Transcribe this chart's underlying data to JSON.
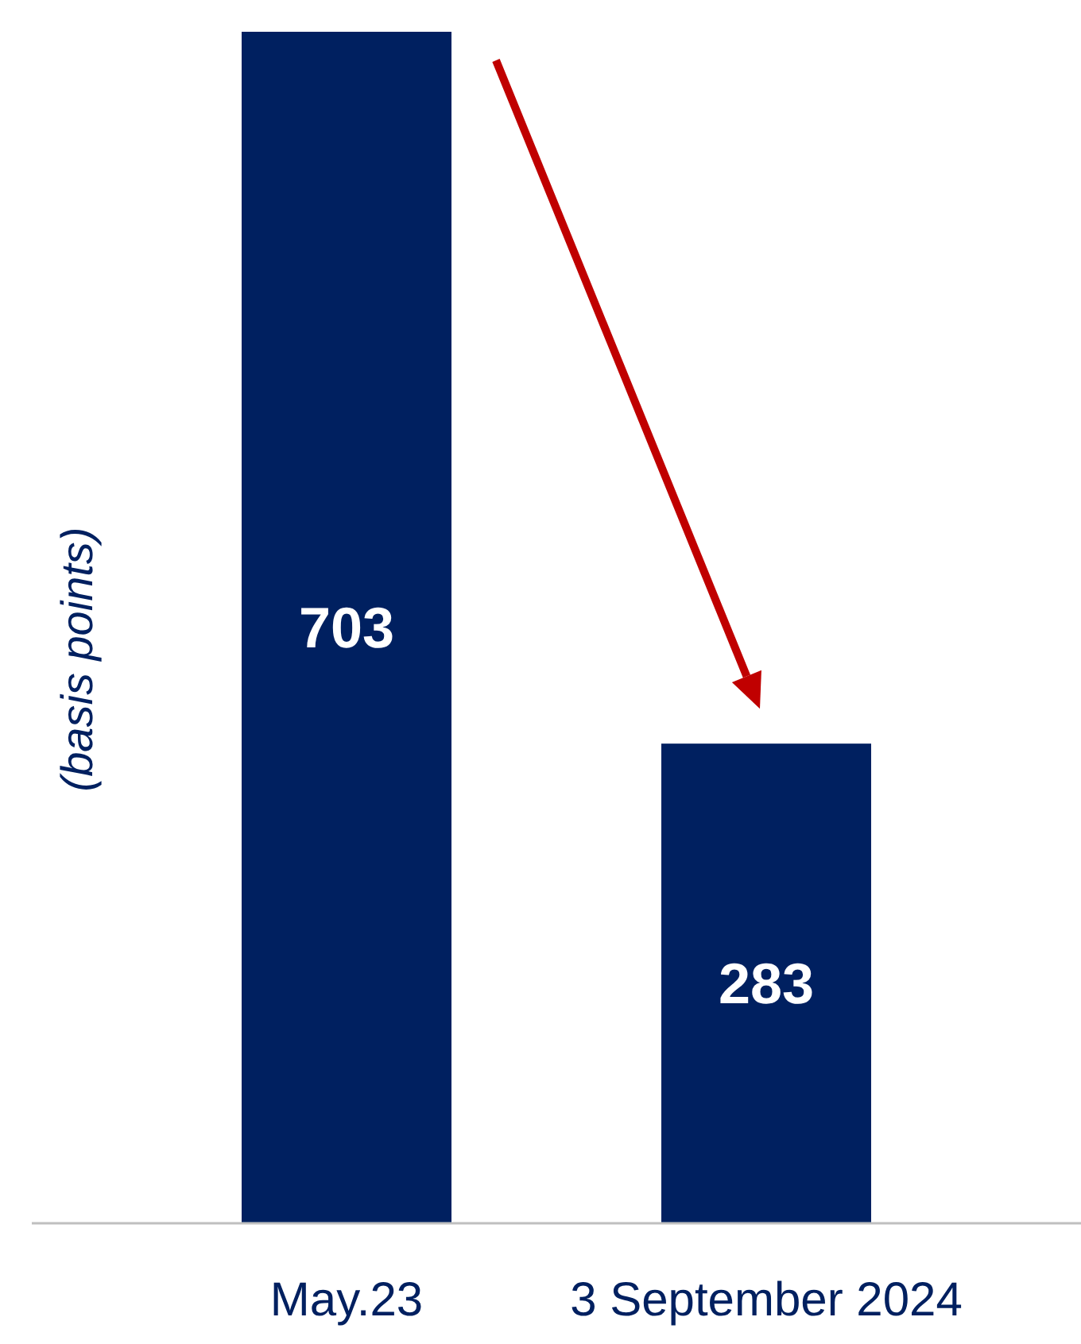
{
  "chart_data": {
    "type": "bar",
    "ylabel": "(basis points)",
    "categories": [
      "May.23",
      "3 September 2024"
    ],
    "values": [
      703,
      283
    ],
    "color": "#002060",
    "data_labels": true,
    "tick_labels": "x"
  }
}
